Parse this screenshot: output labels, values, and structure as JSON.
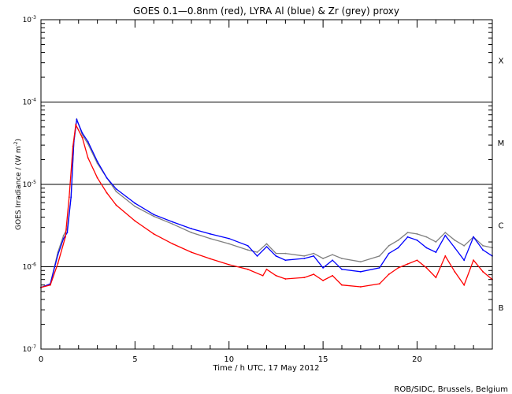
{
  "chart_data": {
    "type": "line",
    "title": "GOES 0.1—0.8nm (red), LYRA Al (blue) & Zr (grey) proxy",
    "xlabel": "Time / h UTC, 17 May 2012",
    "ylabel": "GOES Irradiance / (W m",
    "ylabel_sup": "-2",
    "ylabel_end": ")",
    "xlim": [
      0,
      24
    ],
    "ylim": [
      1e-07,
      0.001
    ],
    "yscale": "log",
    "x_ticks": [
      "0",
      "5",
      "10",
      "15",
      "20"
    ],
    "x_tick_values": [
      0,
      5,
      10,
      15,
      20
    ],
    "y_ticks": [
      {
        "base": "10",
        "exp": "-3",
        "value": 0.001
      },
      {
        "base": "10",
        "exp": "-4",
        "value": 0.0001
      },
      {
        "base": "10",
        "exp": "-5",
        "value": 1e-05
      },
      {
        "base": "10",
        "exp": "-6",
        "value": 1e-06
      },
      {
        "base": "10",
        "exp": "-7",
        "value": 1e-07
      }
    ],
    "hlines": [
      0.0001,
      1e-05,
      1e-06
    ],
    "flare_classes": [
      {
        "label": "X",
        "value": 0.00032
      },
      {
        "label": "M",
        "value": 3.2e-05
      },
      {
        "label": "C",
        "value": 3.2e-06
      },
      {
        "label": "B",
        "value": 3.2e-07
      }
    ],
    "series": [
      {
        "name": "LYRA Zr proxy",
        "color": "#808080",
        "x": [
          0,
          0.5,
          0.9,
          1.2,
          1.4,
          1.6,
          1.75,
          1.9,
          2.2,
          2.5,
          3,
          3.5,
          4,
          5,
          6,
          7,
          8,
          9,
          10,
          11,
          11.5,
          12,
          12.5,
          13,
          14,
          14.5,
          15,
          15.5,
          16,
          17,
          18,
          18.5,
          19,
          19.5,
          20,
          20.5,
          21,
          21.5,
          22,
          22.5,
          23,
          23.5,
          24
        ],
        "y": [
          5.6e-07,
          6.2e-07,
          1.5e-06,
          2.4e-06,
          2.9e-06,
          7e-06,
          3.3e-05,
          6.2e-05,
          4e-05,
          3.1e-05,
          1.8e-05,
          1.2e-05,
          8.2e-06,
          5.4e-06,
          4.1e-06,
          3.3e-06,
          2.6e-06,
          2.2e-06,
          1.9e-06,
          1.6e-06,
          1.5e-06,
          1.9e-06,
          1.45e-06,
          1.45e-06,
          1.35e-06,
          1.45e-06,
          1.26e-06,
          1.4e-06,
          1.26e-06,
          1.15e-06,
          1.35e-06,
          1.8e-06,
          2.1e-06,
          2.6e-06,
          2.5e-06,
          2.3e-06,
          2e-06,
          2.6e-06,
          2.1e-06,
          1.8e-06,
          2.3e-06,
          1.8e-06,
          1.7e-06
        ]
      },
      {
        "name": "LYRA Al proxy",
        "color": "#0000ff",
        "x": [
          0,
          0.5,
          0.9,
          1.2,
          1.4,
          1.6,
          1.75,
          1.9,
          2.2,
          2.5,
          3,
          3.5,
          4,
          5,
          6,
          7,
          8,
          9,
          10,
          11,
          11.5,
          12,
          12.5,
          13,
          14,
          14.5,
          15,
          15.5,
          16,
          17,
          18,
          18.5,
          19,
          19.5,
          20,
          20.5,
          21,
          21.5,
          22,
          22.5,
          23,
          23.5,
          24
        ],
        "y": [
          5.6e-07,
          6.2e-07,
          1.4e-06,
          2.2e-06,
          2.6e-06,
          7e-06,
          3.3e-05,
          6.1e-05,
          4.2e-05,
          3.3e-05,
          1.9e-05,
          1.2e-05,
          8.8e-06,
          5.9e-06,
          4.3e-06,
          3.5e-06,
          2.9e-06,
          2.5e-06,
          2.2e-06,
          1.8e-06,
          1.35e-06,
          1.75e-06,
          1.35e-06,
          1.2e-06,
          1.26e-06,
          1.35e-06,
          9.7e-07,
          1.2e-06,
          9.3e-07,
          8.7e-07,
          9.7e-07,
          1.45e-06,
          1.7e-06,
          2.3e-06,
          2.1e-06,
          1.7e-06,
          1.5e-06,
          2.4e-06,
          1.7e-06,
          1.2e-06,
          2.3e-06,
          1.6e-06,
          1.35e-06
        ]
      },
      {
        "name": "GOES 0.1-0.8nm",
        "color": "#ff0000",
        "x": [
          0,
          0.5,
          0.9,
          1.3,
          1.5,
          1.7,
          1.85,
          2.2,
          2.5,
          3,
          3.5,
          4,
          5,
          6,
          7,
          8,
          9,
          10,
          11,
          11.8,
          12,
          12.5,
          13,
          14,
          14.5,
          15,
          15.5,
          16,
          17,
          18,
          18.5,
          19,
          19.5,
          20,
          20.5,
          21,
          21.5,
          22,
          22.5,
          23,
          23.5,
          24
        ],
        "y": [
          5.6e-07,
          6e-07,
          1.1e-06,
          2.3e-06,
          7e-06,
          2.9e-05,
          5.3e-05,
          3.7e-05,
          2.1e-05,
          1.2e-05,
          7.9e-06,
          5.6e-06,
          3.6e-06,
          2.5e-06,
          1.9e-06,
          1.5e-06,
          1.25e-06,
          1.06e-06,
          9.3e-07,
          7.8e-07,
          9.3e-07,
          7.8e-07,
          7.1e-07,
          7.4e-07,
          8.1e-07,
          6.8e-07,
          7.8e-07,
          6e-07,
          5.7e-07,
          6.2e-07,
          8.1e-07,
          9.7e-07,
          1.08e-06,
          1.2e-06,
          9.7e-07,
          7.4e-07,
          1.35e-06,
          8.7e-07,
          6e-07,
          1.2e-06,
          8.7e-07,
          7e-07
        ]
      }
    ],
    "credit": "ROB/SIDC, Brussels, Belgium",
    "grid": false,
    "legend": "none"
  }
}
